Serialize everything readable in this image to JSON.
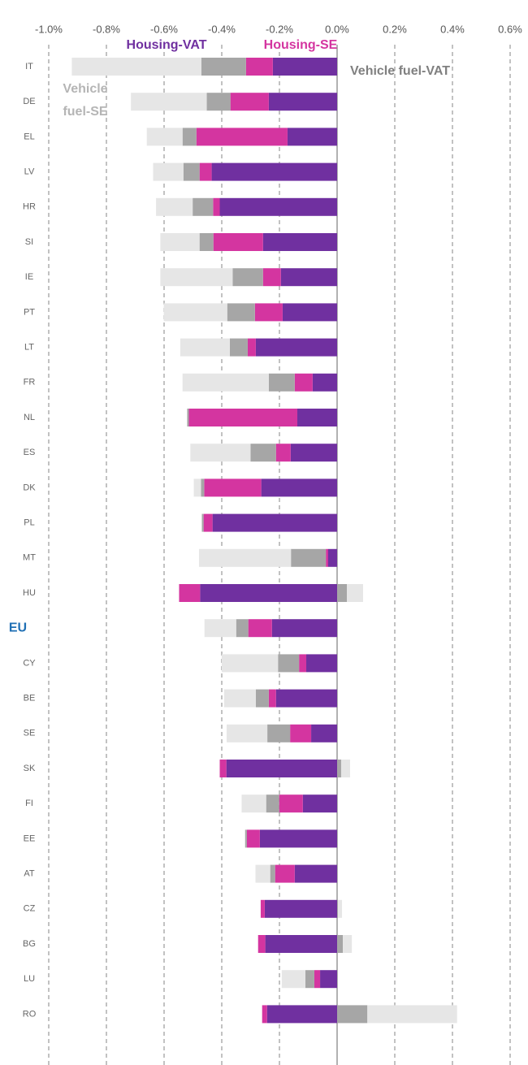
{
  "chart_data": {
    "type": "stacked-bar-horizontal",
    "categories": [
      "IT",
      "DE",
      "EL",
      "LV",
      "HR",
      "SI",
      "IE",
      "PT",
      "LT",
      "FR",
      "NL",
      "ES",
      "DK",
      "PL",
      "MT",
      "HU",
      "EU",
      "CY",
      "BE",
      "SE",
      "SK",
      "FI",
      "EE",
      "AT",
      "CZ",
      "BG",
      "LU",
      "RO"
    ],
    "highlight": {
      "category_index": 16,
      "color": "#1f6fb4"
    },
    "series": [
      {
        "name": "Housing-VAT",
        "color": "#7030a0",
        "values": [
          -0.223,
          -0.237,
          -0.172,
          -0.435,
          -0.407,
          -0.257,
          -0.195,
          -0.189,
          -0.282,
          -0.085,
          -0.138,
          -0.161,
          -0.263,
          -0.432,
          -0.031,
          -0.475,
          -0.226,
          -0.107,
          -0.212,
          -0.09,
          -0.384,
          -0.119,
          -0.268,
          -0.147,
          -0.251,
          -0.249,
          -0.059,
          -0.243
        ]
      },
      {
        "name": "Housing-SE",
        "color": "#d435a0",
        "values": [
          -0.093,
          -0.133,
          -0.316,
          -0.042,
          -0.023,
          -0.172,
          -0.062,
          -0.096,
          -0.028,
          -0.062,
          -0.376,
          -0.051,
          -0.198,
          -0.031,
          -0.008,
          -0.073,
          -0.082,
          -0.025,
          -0.025,
          -0.073,
          -0.023,
          -0.082,
          -0.045,
          -0.068,
          -0.014,
          -0.025,
          -0.02,
          -0.017
        ]
      },
      {
        "name": "Vehicle fuel-VAT",
        "color": "#a6a6a6",
        "values": [
          -0.155,
          -0.082,
          -0.048,
          -0.056,
          -0.071,
          -0.048,
          -0.105,
          -0.096,
          -0.062,
          -0.09,
          -0.006,
          -0.088,
          -0.011,
          -0.006,
          -0.121,
          0.034,
          -0.042,
          -0.073,
          -0.045,
          -0.079,
          0.014,
          -0.045,
          -0.006,
          -0.017,
          0.003,
          0.02,
          -0.031,
          0.105
        ]
      },
      {
        "name": "Vehicle fuel-SE",
        "color": "#e6e6e6",
        "values": [
          -0.449,
          -0.263,
          -0.124,
          -0.105,
          -0.127,
          -0.136,
          -0.251,
          -0.22,
          -0.172,
          -0.299,
          0,
          -0.209,
          -0.025,
          0,
          -0.319,
          0.056,
          -0.11,
          -0.195,
          -0.11,
          -0.141,
          0.031,
          -0.085,
          0,
          -0.051,
          0.014,
          0.031,
          -0.082,
          0.311
        ]
      }
    ],
    "xlim": [
      -1.0,
      0.6
    ],
    "xticks": [
      {
        "value": -1.0,
        "label": "-1.0%"
      },
      {
        "value": -0.8,
        "label": "-0.8%"
      },
      {
        "value": -0.6,
        "label": "-0.6%"
      },
      {
        "value": -0.4,
        "label": "-0.4%"
      },
      {
        "value": -0.2,
        "label": "-0.2%"
      },
      {
        "value": 0.0,
        "label": "0.0%"
      },
      {
        "value": 0.2,
        "label": "0.2%"
      },
      {
        "value": 0.4,
        "label": "0.4%"
      },
      {
        "value": 0.6,
        "label": "0.6%"
      }
    ],
    "grid": true
  }
}
